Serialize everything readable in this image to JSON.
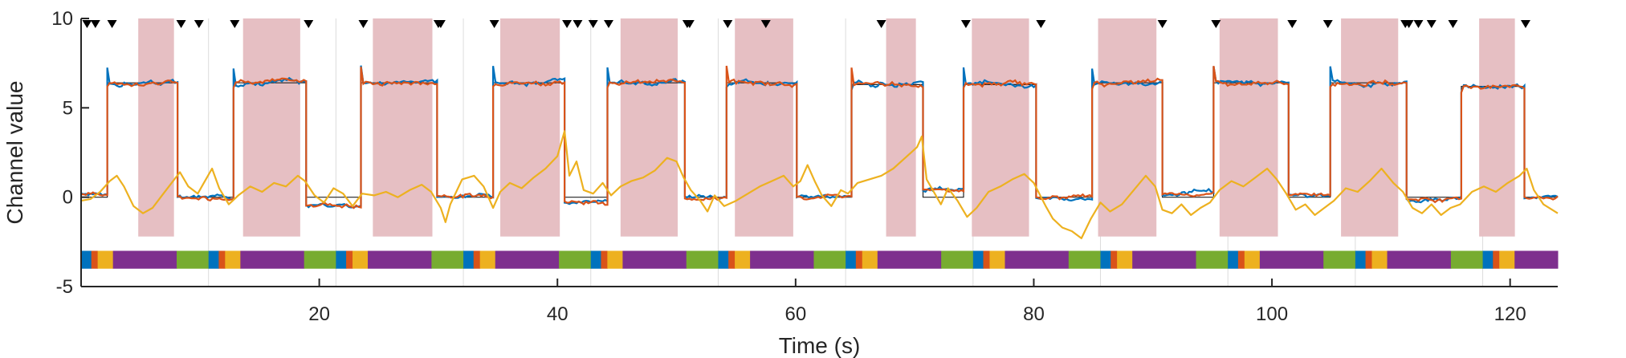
{
  "chart_data": {
    "type": "line",
    "title": "",
    "xlabel": "Time (s)",
    "ylabel": "Channel value",
    "xlim": [
      0,
      124
    ],
    "ylim": [
      -5,
      10
    ],
    "xticks": [
      20,
      40,
      60,
      80,
      100,
      120
    ],
    "yticks": [
      -5,
      0,
      5,
      10
    ],
    "grid_x": [
      0,
      10.7,
      21.4,
      32.1,
      42.8,
      53.5,
      64.2,
      74.9,
      85.6,
      96.3,
      107,
      117.7
    ],
    "colors": {
      "blue": "#0072BD",
      "orange": "#D95319",
      "yellow": "#EDB120",
      "purple": "#7E2F8E",
      "green": "#77AC30",
      "shade": "#E6BFC3",
      "target": "#222222"
    },
    "shaded_intervals": [
      [
        4.8,
        7.8
      ],
      [
        13.6,
        18.4
      ],
      [
        24.5,
        29.5
      ],
      [
        35.2,
        40.2
      ],
      [
        45.3,
        50.1
      ],
      [
        54.9,
        59.8
      ],
      [
        67.6,
        70.1
      ],
      [
        74.8,
        79.6
      ],
      [
        85.4,
        90.3
      ],
      [
        95.6,
        100.5
      ],
      [
        105.8,
        110.6
      ],
      [
        117.4,
        120.4
      ]
    ],
    "markers_x": [
      0.5,
      1.2,
      2.6,
      8.4,
      9.9,
      12.9,
      19.1,
      23.7,
      30,
      30.2,
      34.7,
      40.8,
      41.7,
      43,
      44.3,
      50.9,
      51.1,
      54.3,
      57.5,
      67.2,
      74.3,
      80.6,
      90.8,
      95.3,
      101.7,
      104.7,
      111.2,
      111.5,
      112.3,
      113.4,
      115.2,
      121.3
    ],
    "segments": [
      {
        "x": 0,
        "level": 0.2,
        "amp": 0.25,
        "n": 0
      },
      {
        "x": 2.2,
        "level": 6.4,
        "amp": 0.3,
        "n": 1
      },
      {
        "x": 8.1,
        "level": 0.0,
        "amp": 0.25,
        "n": 2
      },
      {
        "x": 12.8,
        "level": 6.4,
        "amp": 0.3,
        "n": 3
      },
      {
        "x": 18.9,
        "level": -0.4,
        "amp": 0.25,
        "n": 4
      },
      {
        "x": 23.5,
        "level": 6.4,
        "amp": 0.3,
        "n": 5
      },
      {
        "x": 29.9,
        "level": 0.1,
        "amp": 0.25,
        "n": 6
      },
      {
        "x": 34.6,
        "level": 6.4,
        "amp": 0.3,
        "n": 7
      },
      {
        "x": 40.6,
        "level": -0.3,
        "amp": 0.25,
        "n": 8
      },
      {
        "x": 44.2,
        "level": 6.4,
        "amp": 0.3,
        "n": 9
      },
      {
        "x": 50.7,
        "level": 0.0,
        "amp": 0.25,
        "n": 10
      },
      {
        "x": 54.2,
        "level": 6.4,
        "amp": 0.3,
        "n": 11
      },
      {
        "x": 60.1,
        "level": 0.0,
        "amp": 0.25,
        "n": 12
      },
      {
        "x": 64.7,
        "level": 6.3,
        "amp": 0.3,
        "n": 13
      },
      {
        "x": 70.7,
        "level": 0.4,
        "amp": 0.25,
        "n": 14
      },
      {
        "x": 74.1,
        "level": 6.3,
        "amp": 0.3,
        "n": 15
      },
      {
        "x": 80.2,
        "level": 0.0,
        "amp": 0.25,
        "n": 16
      },
      {
        "x": 84.9,
        "level": 6.4,
        "amp": 0.3,
        "n": 17
      },
      {
        "x": 90.8,
        "level": 0.2,
        "amp": 0.25,
        "n": 18
      },
      {
        "x": 95.1,
        "level": 6.4,
        "amp": 0.3,
        "n": 19
      },
      {
        "x": 101.4,
        "level": 0.1,
        "amp": 0.25,
        "n": 20
      },
      {
        "x": 104.9,
        "level": 6.4,
        "amp": 0.3,
        "n": 21
      },
      {
        "x": 111.3,
        "level": -0.1,
        "amp": 0.25,
        "n": 22
      },
      {
        "x": 115.9,
        "level": 6.2,
        "amp": 0.3,
        "n": 23
      },
      {
        "x": 121.2,
        "level": 0.0,
        "amp": 0.25,
        "n": 24
      }
    ],
    "series": [
      {
        "name": "",
        "color": "#EDB120",
        "points": [
          [
            0,
            -0.2
          ],
          [
            0.8,
            -0.1
          ],
          [
            1.6,
            0.3
          ],
          [
            2.4,
            0.9
          ],
          [
            3,
            1.2
          ],
          [
            3.6,
            0.6
          ],
          [
            4.4,
            -0.5
          ],
          [
            5.2,
            -0.9
          ],
          [
            6,
            -0.6
          ],
          [
            6.8,
            0.1
          ],
          [
            7.6,
            0.8
          ],
          [
            8.3,
            1.4
          ],
          [
            9,
            0.6
          ],
          [
            9.8,
            0.2
          ],
          [
            10.4,
            0.9
          ],
          [
            11,
            1.6
          ],
          [
            11.6,
            0.5
          ],
          [
            12.4,
            -0.4
          ],
          [
            13.2,
            0.1
          ],
          [
            14.2,
            0.6
          ],
          [
            15.2,
            0.3
          ],
          [
            16.2,
            0.8
          ],
          [
            17.2,
            0.6
          ],
          [
            18.2,
            1.2
          ],
          [
            18.8,
            0.9
          ],
          [
            19.6,
            0.1
          ],
          [
            20.4,
            -0.3
          ],
          [
            21.2,
            0.5
          ],
          [
            22,
            0.2
          ],
          [
            22.8,
            -0.5
          ],
          [
            23.6,
            0.2
          ],
          [
            24.6,
            0.1
          ],
          [
            25.6,
            0.3
          ],
          [
            26.6,
            0.0
          ],
          [
            27.6,
            0.4
          ],
          [
            28.6,
            0.7
          ],
          [
            29.4,
            0.3
          ],
          [
            30.2,
            -0.6
          ],
          [
            30.6,
            -1.4
          ],
          [
            31,
            -0.4
          ],
          [
            32,
            1.0
          ],
          [
            33,
            1.2
          ],
          [
            33.8,
            0.6
          ],
          [
            34.6,
            -0.6
          ],
          [
            35.2,
            0.3
          ],
          [
            36,
            0.8
          ],
          [
            37,
            0.5
          ],
          [
            38,
            1.1
          ],
          [
            39,
            1.6
          ],
          [
            40,
            2.3
          ],
          [
            40.6,
            3.7
          ],
          [
            41,
            1.2
          ],
          [
            41.6,
            2.0
          ],
          [
            42.2,
            0.4
          ],
          [
            43,
            0.2
          ],
          [
            43.8,
            0.8
          ],
          [
            44.5,
            0.1
          ],
          [
            45.3,
            0.6
          ],
          [
            46.2,
            0.9
          ],
          [
            47.2,
            1.1
          ],
          [
            48.2,
            1.5
          ],
          [
            49.2,
            2.2
          ],
          [
            50,
            2.0
          ],
          [
            50.6,
            1.1
          ],
          [
            51.2,
            0.4
          ],
          [
            52,
            -0.2
          ],
          [
            52.6,
            -0.8
          ],
          [
            53.2,
            0.1
          ],
          [
            54,
            -0.5
          ],
          [
            55,
            -0.2
          ],
          [
            56,
            0.2
          ],
          [
            57,
            0.6
          ],
          [
            58,
            0.9
          ],
          [
            59,
            1.2
          ],
          [
            59.8,
            0.6
          ],
          [
            60.4,
            0.9
          ],
          [
            61,
            1.8
          ],
          [
            61.6,
            0.9
          ],
          [
            62.2,
            0.1
          ],
          [
            63,
            -0.5
          ],
          [
            63.8,
            0.4
          ],
          [
            64.4,
            0.2
          ],
          [
            65.2,
            0.8
          ],
          [
            66.2,
            1.0
          ],
          [
            67.2,
            1.2
          ],
          [
            68.2,
            1.6
          ],
          [
            69.2,
            2.2
          ],
          [
            70.2,
            2.8
          ],
          [
            70.6,
            3.4
          ],
          [
            71,
            1.0
          ],
          [
            71.6,
            0.3
          ],
          [
            72.2,
            -0.4
          ],
          [
            72.8,
            0.5
          ],
          [
            73.6,
            -0.2
          ],
          [
            74.4,
            -1.1
          ],
          [
            75.2,
            -0.6
          ],
          [
            76.2,
            0.3
          ],
          [
            77.2,
            0.6
          ],
          [
            78.2,
            1.0
          ],
          [
            79.2,
            1.3
          ],
          [
            80,
            0.8
          ],
          [
            81,
            -0.5
          ],
          [
            81.6,
            -1.2
          ],
          [
            82.4,
            -1.7
          ],
          [
            83.2,
            -1.9
          ],
          [
            84,
            -2.3
          ],
          [
            84.8,
            -1.2
          ],
          [
            85.6,
            -0.3
          ],
          [
            86.4,
            -0.8
          ],
          [
            87.4,
            -0.4
          ],
          [
            88.4,
            0.4
          ],
          [
            89.4,
            1.2
          ],
          [
            90.2,
            0.6
          ],
          [
            90.8,
            -0.7
          ],
          [
            91.6,
            -0.9
          ],
          [
            92.4,
            -0.4
          ],
          [
            93.2,
            -1.0
          ],
          [
            94,
            -0.6
          ],
          [
            94.8,
            -0.3
          ],
          [
            95.6,
            0.4
          ],
          [
            96.6,
            0.9
          ],
          [
            97.6,
            0.6
          ],
          [
            98.6,
            1.1
          ],
          [
            99.6,
            1.6
          ],
          [
            100.4,
            1.0
          ],
          [
            101.2,
            0.2
          ],
          [
            102,
            -0.7
          ],
          [
            102.8,
            -0.4
          ],
          [
            103.6,
            -1.0
          ],
          [
            104.4,
            -0.6
          ],
          [
            105.2,
            -0.2
          ],
          [
            106.2,
            0.5
          ],
          [
            107.2,
            0.3
          ],
          [
            108.2,
            0.9
          ],
          [
            109.2,
            1.6
          ],
          [
            110.2,
            0.8
          ],
          [
            111,
            0.3
          ],
          [
            111.8,
            -0.6
          ],
          [
            112.6,
            -0.9
          ],
          [
            113.4,
            -0.4
          ],
          [
            114.2,
            -1.0
          ],
          [
            115,
            -0.6
          ],
          [
            115.8,
            -0.4
          ],
          [
            116.8,
            0.3
          ],
          [
            117.8,
            0.6
          ],
          [
            118.8,
            0.3
          ],
          [
            119.8,
            0.8
          ],
          [
            120.8,
            1.2
          ],
          [
            121.4,
            1.6
          ],
          [
            122,
            0.4
          ],
          [
            122.8,
            -0.4
          ],
          [
            124,
            -0.9
          ]
        ]
      },
      {
        "name": "",
        "color": "#0072BD",
        "derived_from": "segments",
        "noise_seed": 3
      },
      {
        "name": "",
        "color": "#D95319",
        "derived_from": "segments",
        "noise_seed": 7
      }
    ],
    "state_bar": {
      "y_center": -3.5,
      "height_units": 1,
      "pattern": [
        {
          "color": "#0072BD",
          "frac": 0.08
        },
        {
          "color": "#D95319",
          "frac": 0.05
        },
        {
          "color": "#EDB120",
          "frac": 0.12
        },
        {
          "color": "#7E2F8E",
          "frac": 0.5
        },
        {
          "color": "#77AC30",
          "frac": 0.25
        }
      ],
      "cycle_starts": [
        0,
        10.7,
        21.4,
        32.1,
        42.8,
        53.5,
        64.2,
        74.9,
        85.6,
        96.3,
        107,
        117.7
      ],
      "cycle_length": 10.7
    }
  }
}
